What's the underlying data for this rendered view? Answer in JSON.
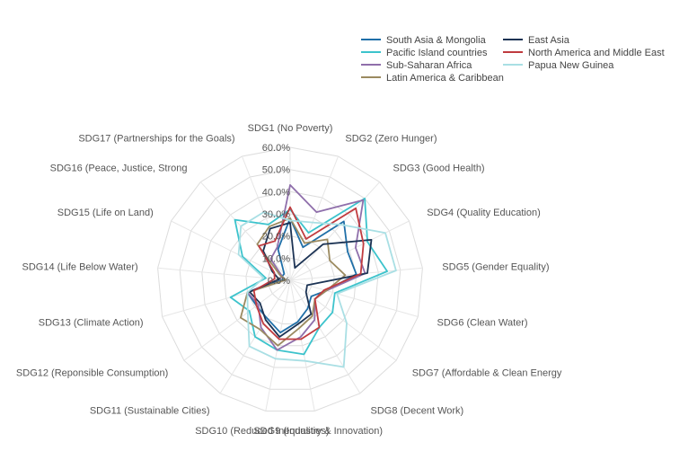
{
  "chart_data": {
    "type": "radar",
    "categories": [
      "SDG1 (No Poverty)",
      "SDG2 (Zero Hunger)",
      "SDG3 (Good Health)",
      "SDG4 (Quality Education)",
      "SDG5 (Gender Equality)",
      "SDG6 (Clean Water)",
      "SDG7 (Affordable  & Clean Energy",
      "SDG8 (Decent Work)",
      "SDG9 (Industry & Innovation)",
      "SDG10 (Reduced Inequalities)",
      "SDG11 (Sustainable Cities)",
      "SDG12 (Reponsible Consumption)",
      "SDG13 (Climate Action)",
      "SDG14 (Life Below Water)",
      "SDG15 (Life on Land)",
      "SDG16 (Peace, Justice, Strong",
      "SDG17 (Partnerships for the Goals)"
    ],
    "ticks": [
      "0.0%",
      "10.0%",
      "20.0%",
      "30.0%",
      "40.0%",
      "50.0%",
      "60.0%"
    ],
    "rlim": [
      0,
      60
    ],
    "grid": true,
    "legend_position": "top-right",
    "series": [
      {
        "name": "South Asia & Mongolia",
        "color": "#1f6fa8",
        "values": [
          28,
          16,
          36,
          29,
          30,
          17,
          12,
          15,
          19,
          24,
          20,
          19,
          20,
          3,
          4,
          4,
          15
        ]
      },
      {
        "name": "Pacific Island countries",
        "color": "#3cc3cc",
        "values": [
          32,
          23,
          50,
          39,
          44,
          21,
          24,
          25,
          34,
          32,
          30,
          23,
          28,
          11,
          24,
          37,
          27
        ]
      },
      {
        "name": "Sub-Saharan Africa",
        "color": "#8f6fab",
        "values": [
          43,
          33,
          49,
          33,
          34,
          17,
          14,
          21,
          26,
          32,
          25,
          18,
          20,
          5,
          4,
          13,
          16
        ]
      },
      {
        "name": "Latin America & Caribbean",
        "color": "#9b8a60",
        "values": [
          28,
          18,
          25,
          20,
          25,
          17,
          14,
          19,
          22,
          30,
          26,
          28,
          20,
          2,
          5,
          22,
          26
        ]
      },
      {
        "name": "East Asia",
        "color": "#1c3354",
        "values": [
          26,
          6,
          22,
          41,
          35,
          8,
          9,
          18,
          20,
          26,
          21,
          17,
          19,
          5,
          9,
          18,
          25
        ]
      },
      {
        "name": "North America and Middle East",
        "color": "#c03b3f",
        "values": [
          33,
          20,
          44,
          37,
          32,
          16,
          14,
          25,
          27,
          27,
          23,
          19,
          17,
          7,
          8,
          21,
          19
        ]
      },
      {
        "name": "Papua New Guinea",
        "color": "#a9dfe4",
        "values": [
          27,
          28,
          34,
          48,
          48,
          22,
          32,
          46,
          37,
          36,
          35,
          24,
          20,
          12,
          26,
          33,
          33
        ]
      }
    ]
  }
}
